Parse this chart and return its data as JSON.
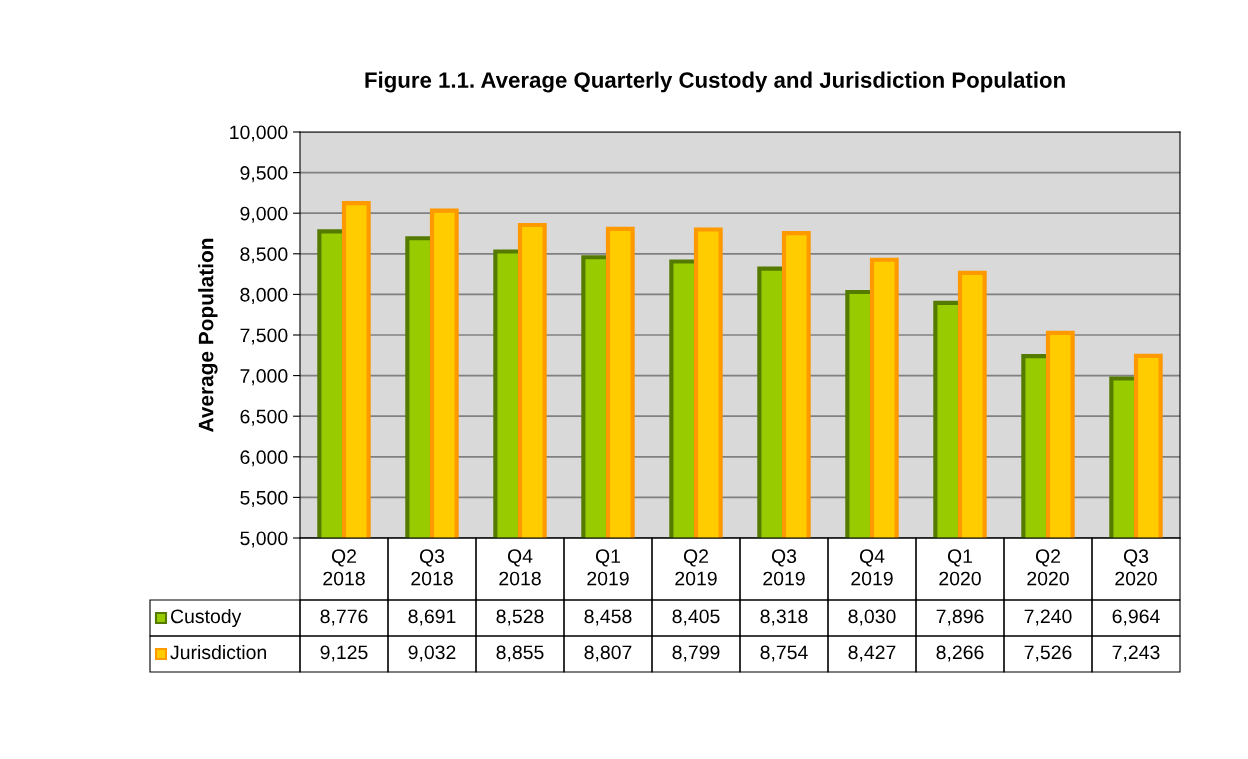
{
  "chart_data": {
    "type": "bar",
    "title": "Figure 1.1. Average Quarterly Custody and Jurisdiction Population",
    "ylabel": "Average Population",
    "categories": [
      "Q2\n2018",
      "Q3\n2018",
      "Q4\n2018",
      "Q1\n2019",
      "Q2\n2019",
      "Q3\n2019",
      "Q4\n2019",
      "Q1\n2020",
      "Q2\n2020",
      "Q3\n2020"
    ],
    "series": [
      {
        "name": "Custody",
        "color": "#99cc00",
        "values": [
          8776,
          8691,
          8528,
          8458,
          8405,
          8318,
          8030,
          7896,
          7240,
          6964
        ],
        "value_labels": [
          "8,776",
          "8,691",
          "8,528",
          "8,458",
          "8,405",
          "8,318",
          "8,030",
          "7,896",
          "7,240",
          "6,964"
        ]
      },
      {
        "name": "Jurisdiction",
        "color": "#ffcc00",
        "values": [
          9125,
          9032,
          8855,
          8807,
          8799,
          8754,
          8427,
          8266,
          7526,
          7243
        ],
        "value_labels": [
          "9,125",
          "9,032",
          "8,855",
          "8,807",
          "8,799",
          "8,754",
          "8,427",
          "8,266",
          "7,526",
          "7,243"
        ]
      }
    ],
    "ylim": [
      5000,
      10000
    ],
    "yticks": [
      {
        "value": 5000,
        "label": "5,000"
      },
      {
        "value": 5500,
        "label": "5,500"
      },
      {
        "value": 6000,
        "label": "6,000"
      },
      {
        "value": 6500,
        "label": "6,500"
      },
      {
        "value": 7000,
        "label": "7,000"
      },
      {
        "value": 7500,
        "label": "7,500"
      },
      {
        "value": 8000,
        "label": "8,000"
      },
      {
        "value": 8500,
        "label": "8,500"
      },
      {
        "value": 9000,
        "label": "9,000"
      },
      {
        "value": 9500,
        "label": "9,500"
      },
      {
        "value": 10000,
        "label": "10,000"
      }
    ],
    "grid": "y",
    "legend": "bottom left"
  }
}
